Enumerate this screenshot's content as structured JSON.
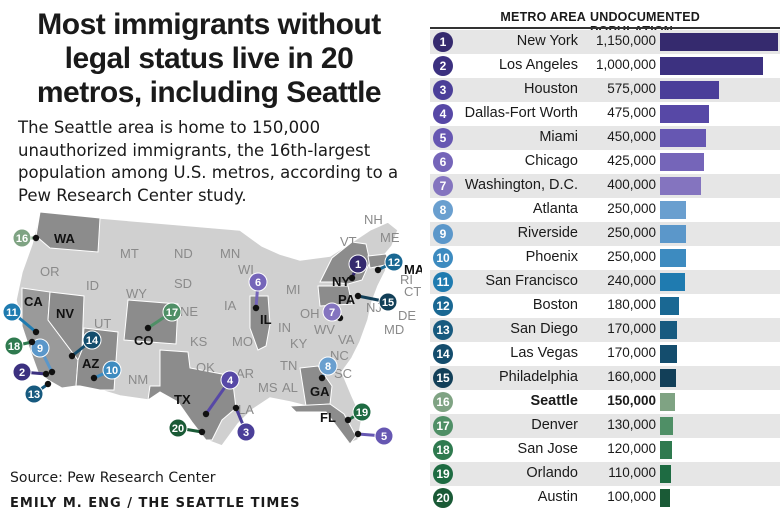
{
  "headline": "Most immigrants without legal status live in 20 metros, including Seattle",
  "subtitle": "The Seattle area is home to 150,000 unauthorized immigrants, the 16th-largest population among U.S. metros, according to a Pew Research Center study.",
  "source": "Source: Pew Research Center",
  "credit": "EMILY M. ENG / THE SEATTLE TIMES",
  "highlight_metro": "Seattle",
  "map": {
    "state_labels": [
      "WA",
      "OR",
      "CA",
      "NV",
      "ID",
      "MT",
      "WY",
      "UT",
      "AZ",
      "CO",
      "NM",
      "ND",
      "SD",
      "NE",
      "KS",
      "OK",
      "TX",
      "MN",
      "IA",
      "MO",
      "AR",
      "LA",
      "WI",
      "IL",
      "MI",
      "IN",
      "OH",
      "KY",
      "TN",
      "MS",
      "AL",
      "GA",
      "FL",
      "SC",
      "NC",
      "VA",
      "WV",
      "PA",
      "NY",
      "VT",
      "NH",
      "ME",
      "MA",
      "CT",
      "RI",
      "NJ",
      "DE",
      "MD"
    ],
    "highlighted_states": [
      "WA",
      "CA",
      "NV",
      "AZ",
      "CO",
      "TX",
      "IL",
      "NY",
      "PA",
      "GA",
      "FL",
      "MA"
    ]
  },
  "chart_data": {
    "type": "bar",
    "orientation": "horizontal",
    "title": "",
    "column_headers": [
      "METRO AREA",
      "UNDOCUMENTED POPULATION"
    ],
    "categories": [
      "New York",
      "Los Angeles",
      "Houston",
      "Dallas-Fort Worth",
      "Miami",
      "Chicago",
      "Washington, D.C.",
      "Atlanta",
      "Riverside",
      "Phoenix",
      "San Francisco",
      "Boston",
      "San Diego",
      "Las Vegas",
      "Philadelphia",
      "Seattle",
      "Denver",
      "San Jose",
      "Orlando",
      "Austin"
    ],
    "ranks": [
      "1",
      "2",
      "3",
      "4",
      "5",
      "6",
      "7",
      "8",
      "9",
      "10",
      "11",
      "12",
      "13",
      "14",
      "15",
      "16",
      "17",
      "18",
      "19",
      "20"
    ],
    "values": [
      1150000,
      1000000,
      575000,
      475000,
      450000,
      425000,
      400000,
      250000,
      250000,
      250000,
      240000,
      180000,
      170000,
      170000,
      160000,
      150000,
      130000,
      120000,
      110000,
      100000
    ],
    "value_labels": [
      "1,150,000",
      "1,000,000",
      "575,000",
      "475,000",
      "450,000",
      "425,000",
      "400,000",
      "250,000",
      "250,000",
      "250,000",
      "240,000",
      "180,000",
      "170,000",
      "170,000",
      "160,000",
      "150,000",
      "130,000",
      "120,000",
      "110,000",
      "100,000"
    ],
    "colors": [
      "#352a6e",
      "#3c3180",
      "#4b3f99",
      "#5748a6",
      "#6657b2",
      "#7565b9",
      "#8474bf",
      "#6a9fcf",
      "#5b97ca",
      "#3d8bc0",
      "#1f7bb0",
      "#1a6893",
      "#175a7f",
      "#144d6d",
      "#123f58",
      "#7fa383",
      "#4f8f66",
      "#2f7a4f",
      "#1e6b42",
      "#1a5a36"
    ],
    "xlim": [
      0,
      1150000
    ],
    "grid": false
  }
}
